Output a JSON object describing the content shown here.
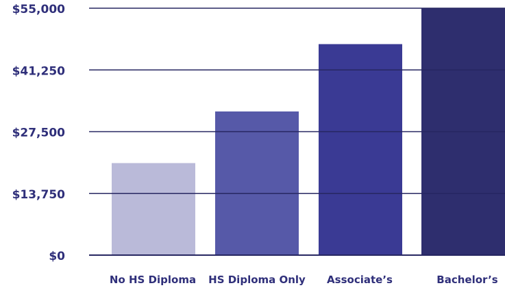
{
  "chart_data": {
    "type": "bar",
    "title": "",
    "xlabel": "",
    "ylabel": "",
    "categories": [
      "No HS Diploma",
      "HS Diploma Only",
      "Associate’s",
      "Bachelor’s"
    ],
    "values": [
      20500,
      32000,
      47000,
      55000
    ],
    "ylim": [
      0,
      55000
    ],
    "y_ticks": [
      0,
      13750,
      27500,
      41250,
      55000
    ],
    "y_tick_labels": [
      "$0",
      "$13,750",
      "$27,500",
      "$41,250",
      "$55,000"
    ],
    "grid": true,
    "bar_colors": [
      "#babad9",
      "#5659a8",
      "#3a3a94",
      "#2e2e6e"
    ],
    "text_color": "#2f2f7a",
    "grid_color": "#262661"
  }
}
